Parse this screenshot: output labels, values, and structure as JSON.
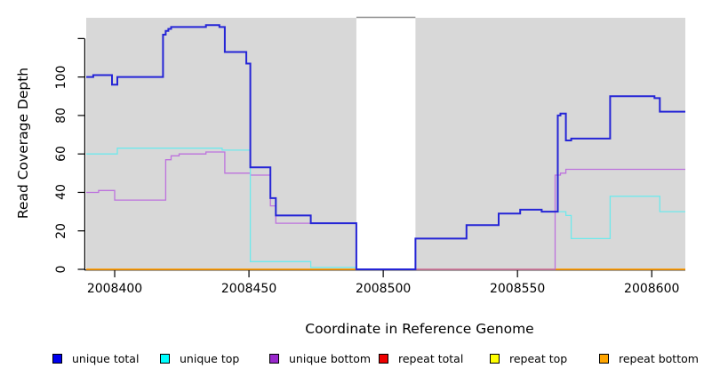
{
  "chart_data": {
    "type": "line",
    "subtype": "step-coverage",
    "title": "",
    "xlabel": "Coordinate in Reference Genome",
    "ylabel": "Read Coverage Depth",
    "x_range": [
      2008389.4,
      2008612.5
    ],
    "y_range": [
      0,
      130.8
    ],
    "x_ticks": [
      2008400,
      2008450,
      2008500,
      2008550,
      2008600
    ],
    "x_tick_labels": [
      "2008400",
      "2008450",
      "2008500",
      "2008550",
      "2008600"
    ],
    "y_ticks": [
      0,
      20,
      40,
      60,
      80,
      100,
      120
    ],
    "y_tick_labels": [
      "0",
      "20",
      "40",
      "60",
      "80",
      "100",
      ""
    ],
    "grid": false,
    "plot_background": "#d8d8d8",
    "mask_region": {
      "x_start": 2008490,
      "x_end": 2008512,
      "color": "#ffffff",
      "top_border_color": "#8c8c8c"
    },
    "axis_color": "#000000",
    "series": [
      {
        "name": "repeat top",
        "color": "#f5e900",
        "line_width": 1.3,
        "segments": [
          [
            [
              2008389.4,
              0
            ],
            [
              2008490,
              0
            ]
          ],
          [
            [
              2008512,
              0
            ],
            [
              2008612.5,
              0
            ]
          ]
        ]
      },
      {
        "name": "repeat total",
        "color": "#dd2222",
        "line_width": 1.3,
        "segments": [
          [
            [
              2008389.4,
              0
            ],
            [
              2008490,
              0
            ]
          ],
          [
            [
              2008512,
              0
            ],
            [
              2008612.5,
              0
            ]
          ]
        ]
      },
      {
        "name": "repeat bottom",
        "color": "#ffa000",
        "line_width": 1.6,
        "segments": [
          [
            [
              2008389.4,
              0
            ],
            [
              2008490,
              0
            ]
          ],
          [
            [
              2008512,
              0
            ],
            [
              2008612.5,
              0
            ]
          ]
        ]
      },
      {
        "name": "unique bottom",
        "color": "#bd72dd",
        "line_width": 1.3,
        "segments": [
          [
            [
              2008389.4,
              40
            ],
            [
              2008394,
              41
            ],
            [
              2008400,
              36
            ],
            [
              2008419,
              57
            ],
            [
              2008421,
              59
            ],
            [
              2008424,
              60
            ],
            [
              2008434,
              61
            ],
            [
              2008441,
              50
            ],
            [
              2008450.5,
              49
            ],
            [
              2008458,
              33
            ],
            [
              2008460,
              24
            ],
            [
              2008490,
              0
            ],
            [
              2008564,
              49
            ],
            [
              2008566,
              50
            ],
            [
              2008568,
              52
            ],
            [
              2008612.5,
              52
            ]
          ]
        ]
      },
      {
        "name": "unique top",
        "color": "#6fe9ec",
        "line_width": 1.3,
        "segments": [
          [
            [
              2008389.4,
              60
            ],
            [
              2008401,
              63
            ],
            [
              2008440,
              62
            ],
            [
              2008450.5,
              4
            ],
            [
              2008473,
              1
            ],
            [
              2008490,
              0
            ],
            [
              2008512,
              16
            ],
            [
              2008531,
              23
            ],
            [
              2008543,
              29
            ],
            [
              2008551,
              31
            ],
            [
              2008559,
              30
            ],
            [
              2008568,
              28
            ],
            [
              2008570,
              16
            ],
            [
              2008584.5,
              38
            ],
            [
              2008603,
              30
            ],
            [
              2008612.5,
              30
            ]
          ]
        ]
      },
      {
        "name": "unique total",
        "color": "#2525d6",
        "line_width": 2,
        "segments": [
          [
            [
              2008389.4,
              100
            ],
            [
              2008392,
              101
            ],
            [
              2008399,
              96
            ],
            [
              2008401,
              100
            ],
            [
              2008418,
              122
            ],
            [
              2008419,
              124
            ],
            [
              2008420,
              125
            ],
            [
              2008421,
              126
            ],
            [
              2008434,
              127
            ],
            [
              2008439,
              126
            ],
            [
              2008441,
              113
            ],
            [
              2008449,
              107
            ],
            [
              2008450.5,
              53
            ],
            [
              2008458,
              37
            ],
            [
              2008460,
              28
            ],
            [
              2008473,
              24
            ],
            [
              2008490,
              0
            ],
            [
              2008512,
              16
            ],
            [
              2008531,
              23
            ],
            [
              2008543,
              29
            ],
            [
              2008551,
              31
            ],
            [
              2008559,
              30
            ],
            [
              2008565,
              80
            ],
            [
              2008566,
              81
            ],
            [
              2008568,
              67
            ],
            [
              2008570,
              68
            ],
            [
              2008584.5,
              90
            ],
            [
              2008601,
              89
            ],
            [
              2008603,
              82
            ],
            [
              2008612.5,
              82
            ]
          ]
        ]
      }
    ]
  },
  "legend": {
    "items": [
      {
        "label": "unique total",
        "color": "#0000ee"
      },
      {
        "label": "unique top",
        "color": "#00ffff"
      },
      {
        "label": "unique bottom",
        "color": "#9928cc"
      },
      {
        "label": "repeat total",
        "color": "#ee0000"
      },
      {
        "label": "repeat top",
        "color": "#ffff00"
      },
      {
        "label": "repeat bottom",
        "color": "#ffa500"
      }
    ]
  }
}
